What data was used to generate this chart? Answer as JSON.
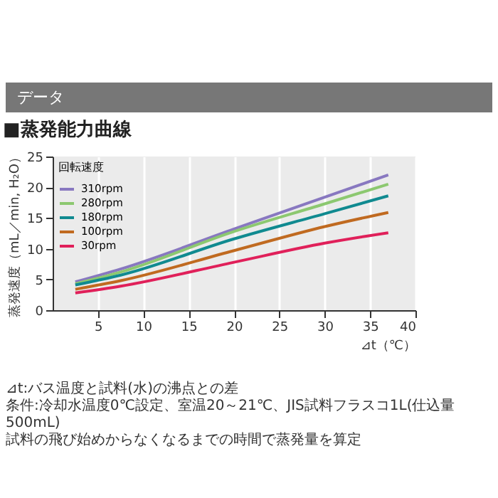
{
  "chart_data": {
    "type": "line",
    "title": "データ",
    "subtitle": "■蒸発能力曲線",
    "xlabel": "⊿t（℃）",
    "ylabel": "蒸発速度（mL／min, H₂O）",
    "legend_title": "回転速度",
    "x": [
      2.5,
      7.5,
      20,
      30,
      37
    ],
    "series": [
      {
        "name": "310rpm",
        "color": "#8878c0",
        "values": [
          4.6,
          6.7,
          13.2,
          18.4,
          22.0
        ]
      },
      {
        "name": "280rpm",
        "color": "#8cc870",
        "values": [
          4.3,
          6.2,
          12.8,
          17.3,
          20.5
        ]
      },
      {
        "name": "180rpm",
        "color": "#108a90",
        "values": [
          4.1,
          5.7,
          11.6,
          15.7,
          18.6
        ]
      },
      {
        "name": "100rpm",
        "color": "#c06a20",
        "values": [
          3.4,
          4.8,
          9.7,
          13.6,
          15.9
        ]
      },
      {
        "name": "30rpm",
        "color": "#e0205a",
        "values": [
          2.8,
          3.9,
          7.8,
          10.9,
          12.6
        ]
      }
    ],
    "xlim": [
      0,
      40
    ],
    "xticks": [
      5,
      10,
      15,
      20,
      25,
      30,
      35,
      40
    ],
    "ylim": [
      0,
      25
    ],
    "yticks": [
      0,
      5,
      10,
      15,
      20,
      25
    ],
    "grid": "x",
    "legend": "top left",
    "annotations": [
      "⊿t:バス温度と試料(水)の沸点との差",
      "条件:冷却水温度0℃設定、室温20～21℃、JIS試料フラスコ1L(仕込量500mL)",
      "試料の飛び始めからなくなるまでの時間で蒸発量を算定"
    ]
  }
}
